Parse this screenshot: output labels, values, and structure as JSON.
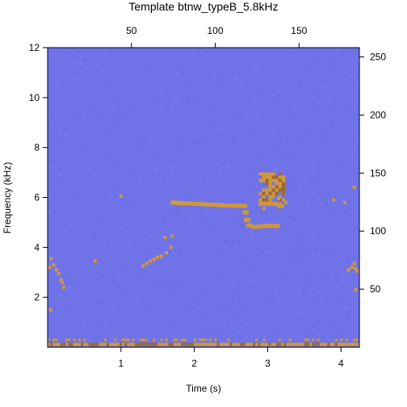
{
  "chart_data": {
    "type": "heatmap",
    "title": "Template btnw_typeB_5.8kHz",
    "xlabel": "Time (s)",
    "ylabel": "Frequency (kHz)",
    "xlim": [
      0,
      4.25
    ],
    "ylim": [
      0,
      12
    ],
    "top_axis_lim": [
      0,
      186
    ],
    "right_axis_lim": [
      0,
      258
    ],
    "x_ticks": [
      "1",
      "2",
      "3",
      "4"
    ],
    "x_tick_values": [
      1,
      2,
      3,
      4
    ],
    "y_ticks": [
      "2",
      "4",
      "6",
      "8",
      "10",
      "12"
    ],
    "y_tick_values": [
      2,
      4,
      6,
      8,
      10,
      12
    ],
    "top_ticks": [
      "50",
      "100",
      "150"
    ],
    "top_tick_values": [
      50,
      100,
      150
    ],
    "right_ticks": [
      "50",
      "100",
      "150",
      "200",
      "250"
    ],
    "right_tick_values": [
      50,
      100,
      150,
      200,
      250
    ],
    "colors": {
      "background": "#7073e8",
      "highlight": "#d1983a",
      "highlight_dark": "#9a6a2b"
    },
    "template_cells": [
      {
        "t": 1.72,
        "f": 5.8
      },
      {
        "t": 1.78,
        "f": 5.78
      },
      {
        "t": 1.85,
        "f": 5.77
      },
      {
        "t": 1.92,
        "f": 5.76
      },
      {
        "t": 1.98,
        "f": 5.75
      },
      {
        "t": 2.05,
        "f": 5.74
      },
      {
        "t": 2.12,
        "f": 5.73
      },
      {
        "t": 2.18,
        "f": 5.72
      },
      {
        "t": 2.25,
        "f": 5.71
      },
      {
        "t": 2.3,
        "f": 5.7
      },
      {
        "t": 2.36,
        "f": 5.69
      },
      {
        "t": 2.43,
        "f": 5.68
      },
      {
        "t": 2.5,
        "f": 5.68
      },
      {
        "t": 2.56,
        "f": 5.67
      },
      {
        "t": 2.62,
        "f": 5.67
      },
      {
        "t": 2.68,
        "f": 5.66
      },
      {
        "t": 2.7,
        "f": 5.4
      },
      {
        "t": 2.72,
        "f": 5.1
      },
      {
        "t": 2.75,
        "f": 4.88
      },
      {
        "t": 2.82,
        "f": 4.82
      },
      {
        "t": 2.9,
        "f": 4.84
      },
      {
        "t": 2.98,
        "f": 4.86
      },
      {
        "t": 3.06,
        "f": 4.86
      },
      {
        "t": 3.12,
        "f": 4.86
      },
      {
        "t": 2.92,
        "f": 5.75
      },
      {
        "t": 3.0,
        "f": 5.75
      },
      {
        "t": 3.08,
        "f": 5.75
      },
      {
        "t": 3.15,
        "f": 5.72
      },
      {
        "t": 3.18,
        "f": 5.65
      }
    ]
  }
}
